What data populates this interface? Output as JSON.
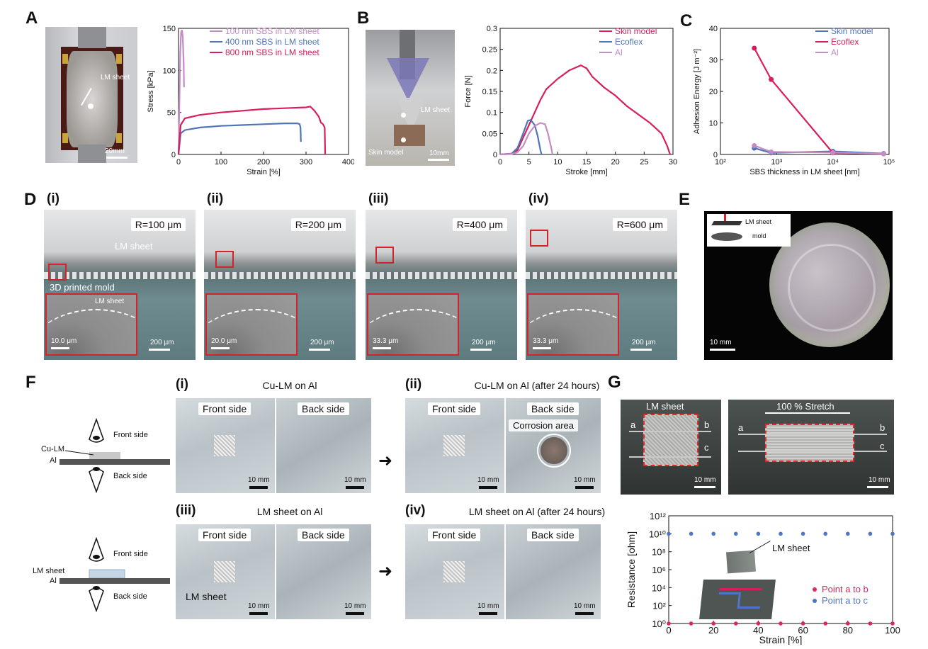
{
  "panels": {
    "A": "A",
    "B": "B",
    "C": "C",
    "D": "D",
    "E": "E",
    "F": "F",
    "G": "G"
  },
  "photoA": {
    "lm_label": "LM sheet",
    "scale": "20mm"
  },
  "photoB": {
    "lm_label": "LM sheet",
    "skin_label": "Skin model",
    "scale": "10mm"
  },
  "chartA": {
    "type": "line",
    "xlabel": "Strain [%]",
    "ylabel": "Stress [kPa]",
    "xlim": [
      0,
      400
    ],
    "ylim": [
      0,
      150
    ],
    "xticks": [
      "0",
      "100",
      "200",
      "300",
      "400"
    ],
    "yticks": [
      "0",
      "50",
      "100",
      "150"
    ],
    "legend_position": "top-right",
    "series": [
      {
        "name": "100 nm SBS in LM sheet",
        "color": "#c48bc4",
        "points": [
          [
            0,
            0
          ],
          [
            2,
            60
          ],
          [
            4,
            120
          ],
          [
            6,
            145
          ],
          [
            8,
            148
          ],
          [
            10,
            140
          ],
          [
            12,
            110
          ],
          [
            13,
            80
          ]
        ]
      },
      {
        "name": "400 nm SBS in LM sheet",
        "color": "#4f75b8",
        "points": [
          [
            0,
            0
          ],
          [
            5,
            25
          ],
          [
            15,
            29
          ],
          [
            50,
            32
          ],
          [
            100,
            34
          ],
          [
            150,
            35
          ],
          [
            200,
            36
          ],
          [
            250,
            37
          ],
          [
            280,
            37
          ],
          [
            285,
            36
          ],
          [
            287,
            32
          ],
          [
            288,
            15
          ]
        ]
      },
      {
        "name": "800 nm SBS in LM sheet",
        "color": "#d81e5b",
        "points": [
          [
            0,
            0
          ],
          [
            5,
            35
          ],
          [
            15,
            43
          ],
          [
            50,
            47
          ],
          [
            100,
            50
          ],
          [
            150,
            52
          ],
          [
            200,
            54
          ],
          [
            250,
            55
          ],
          [
            300,
            56
          ],
          [
            310,
            57
          ],
          [
            320,
            52
          ],
          [
            330,
            45
          ],
          [
            335,
            38
          ],
          [
            340,
            36
          ],
          [
            344,
            32
          ],
          [
            345,
            0
          ]
        ]
      }
    ]
  },
  "chartB": {
    "type": "line",
    "xlabel": "Stroke [mm]",
    "ylabel": "Force [N]",
    "xlim": [
      0,
      30
    ],
    "ylim": [
      0,
      0.3
    ],
    "xticks": [
      "0",
      "5",
      "10",
      "15",
      "20",
      "25",
      "30"
    ],
    "yticks": [
      "0",
      "0.05",
      "0.1",
      "0.15",
      "0.2",
      "0.25",
      "0.3"
    ],
    "legend_position": "top-right",
    "series": [
      {
        "name": "Skin model",
        "color": "#d81e5b",
        "points": [
          [
            0,
            0
          ],
          [
            2,
            0.002
          ],
          [
            3,
            0.01
          ],
          [
            4,
            0.04
          ],
          [
            5,
            0.07
          ],
          [
            6,
            0.1
          ],
          [
            7,
            0.13
          ],
          [
            8,
            0.155
          ],
          [
            10,
            0.18
          ],
          [
            12,
            0.2
          ],
          [
            14,
            0.212
          ],
          [
            15,
            0.205
          ],
          [
            16,
            0.185
          ],
          [
            18,
            0.16
          ],
          [
            20,
            0.14
          ],
          [
            22,
            0.115
          ],
          [
            24,
            0.095
          ],
          [
            26,
            0.075
          ],
          [
            28,
            0.05
          ],
          [
            29,
            0.02
          ],
          [
            29.5,
            0
          ]
        ]
      },
      {
        "name": "Ecoflex",
        "color": "#4f75b8",
        "points": [
          [
            0,
            0
          ],
          [
            2,
            0.002
          ],
          [
            3,
            0.015
          ],
          [
            4,
            0.05
          ],
          [
            4.8,
            0.08
          ],
          [
            5.3,
            0.082
          ],
          [
            6,
            0.07
          ],
          [
            6.5,
            0.045
          ],
          [
            7,
            0.01
          ],
          [
            7.2,
            0
          ]
        ]
      },
      {
        "name": "Al",
        "color": "#c48bc4",
        "points": [
          [
            0,
            0
          ],
          [
            2,
            0.001
          ],
          [
            3,
            0.005
          ],
          [
            4,
            0.02
          ],
          [
            5,
            0.05
          ],
          [
            6,
            0.068
          ],
          [
            7,
            0.075
          ],
          [
            7.8,
            0.072
          ],
          [
            8.3,
            0.05
          ],
          [
            8.8,
            0.02
          ],
          [
            9.1,
            0
          ]
        ]
      }
    ]
  },
  "chartC": {
    "type": "line",
    "xlabel": "SBS thickness in LM sheet [nm]",
    "ylabel": "Adhesion Energy [J m⁻²]",
    "xscale": "log",
    "xlim": [
      100,
      100000
    ],
    "ylim": [
      0,
      40
    ],
    "xticks": [
      "10²",
      "10³",
      "10⁴",
      "10⁵"
    ],
    "yticks": [
      "0",
      "10",
      "20",
      "30",
      "40"
    ],
    "legend_position": "top-right",
    "series": [
      {
        "name": "Skin model",
        "color": "#4f75b8",
        "points": [
          [
            400,
            2.0
          ],
          [
            800,
            0.5
          ],
          [
            10000,
            1.0
          ],
          [
            80000,
            0.3
          ]
        ]
      },
      {
        "name": "Ecoflex",
        "color": "#d81e5b",
        "points": [
          [
            400,
            33.7
          ],
          [
            800,
            23.8
          ],
          [
            10000,
            0.5
          ],
          [
            80000,
            0.2
          ]
        ]
      },
      {
        "name": "Al",
        "color": "#c48bc4",
        "points": [
          [
            400,
            2.8
          ],
          [
            800,
            0.8
          ],
          [
            10000,
            0.6
          ],
          [
            80000,
            0.2
          ]
        ]
      }
    ]
  },
  "panelD": [
    {
      "tag": "(i)",
      "radius": "R=100 μm",
      "inset_scale": "10.0 μm",
      "scale": "200 μm",
      "lm_label": "LM sheet",
      "mold_label": "3D printed mold",
      "inset_label": "LM sheet"
    },
    {
      "tag": "(ii)",
      "radius": "R=200 μm",
      "inset_scale": "20.0 μm",
      "scale": "200 μm"
    },
    {
      "tag": "(iii)",
      "radius": "R=400 μm",
      "inset_scale": "33.3 μm",
      "scale": "200 μm"
    },
    {
      "tag": "(iv)",
      "radius": "R=600 μm",
      "inset_scale": "33.3 μm",
      "scale": "200 μm"
    }
  ],
  "panelE": {
    "lm_label": "LM sheet",
    "mold_label": "mold",
    "scale": "10 mm"
  },
  "panelF": {
    "diagram1": {
      "front": "Front side",
      "back": "Back side",
      "layer": "Cu-LM",
      "base": "Al"
    },
    "diagram2": {
      "front": "Front side",
      "back": "Back side",
      "layer": "LM sheet",
      "base": "Al"
    },
    "rows": [
      {
        "tag": "(i)",
        "title": "Cu-LM on Al",
        "front": "Front side",
        "back": "Back side",
        "scale": "10 mm"
      },
      {
        "tag": "(ii)",
        "title": "Cu-LM on Al (after 24 hours)",
        "front": "Front side",
        "back": "Back side",
        "corrosion": "Corrosion area",
        "scale": "10 mm"
      },
      {
        "tag": "(iii)",
        "title": "LM sheet on Al",
        "front": "Front side",
        "back": "Back side",
        "lm_label": "LM sheet",
        "scale": "10 mm"
      },
      {
        "tag": "(iv)",
        "title": "LM sheet on Al (after 24 hours)",
        "front": "Front side",
        "back": "Back side",
        "scale": "10 mm"
      }
    ]
  },
  "panelG": {
    "photo1": {
      "lm_label": "LM sheet",
      "a": "a",
      "b": "b",
      "c": "c",
      "scale": "10 mm"
    },
    "photo2": {
      "stretch": "100 % Stretch",
      "a": "a",
      "b": "b",
      "c": "c",
      "scale": "10 mm"
    },
    "inset_label": "LM sheet"
  },
  "chart_data": {
    "type": "scatter",
    "xlabel": "Strain [%]",
    "ylabel": "Resistance [ohm]",
    "xlim": [
      0,
      100
    ],
    "yscale": "log",
    "ylim": [
      1,
      1000000000000.0
    ],
    "xticks": [
      "0",
      "20",
      "40",
      "60",
      "80",
      "100"
    ],
    "yticks": [
      "10⁰",
      "10²",
      "10⁴",
      "10⁶",
      "10⁸",
      "10¹⁰",
      "10¹²"
    ],
    "legend_position": "bottom-right",
    "series": [
      {
        "name": "Point a to b",
        "color": "#e0245e",
        "x": [
          0,
          10,
          20,
          30,
          40,
          50,
          60,
          70,
          80,
          90,
          100
        ],
        "y": [
          1,
          1,
          1,
          1,
          1,
          1,
          1,
          1,
          1,
          1,
          1
        ]
      },
      {
        "name": "Point a to c",
        "color": "#4f75c8",
        "x": [
          0,
          10,
          20,
          30,
          40,
          50,
          60,
          70,
          80,
          90,
          100
        ],
        "y": [
          10000000000.0,
          10000000000.0,
          10000000000.0,
          10000000000.0,
          10000000000.0,
          10000000000.0,
          10000000000.0,
          10000000000.0,
          10000000000.0,
          10000000000.0,
          10000000000.0
        ]
      }
    ]
  }
}
